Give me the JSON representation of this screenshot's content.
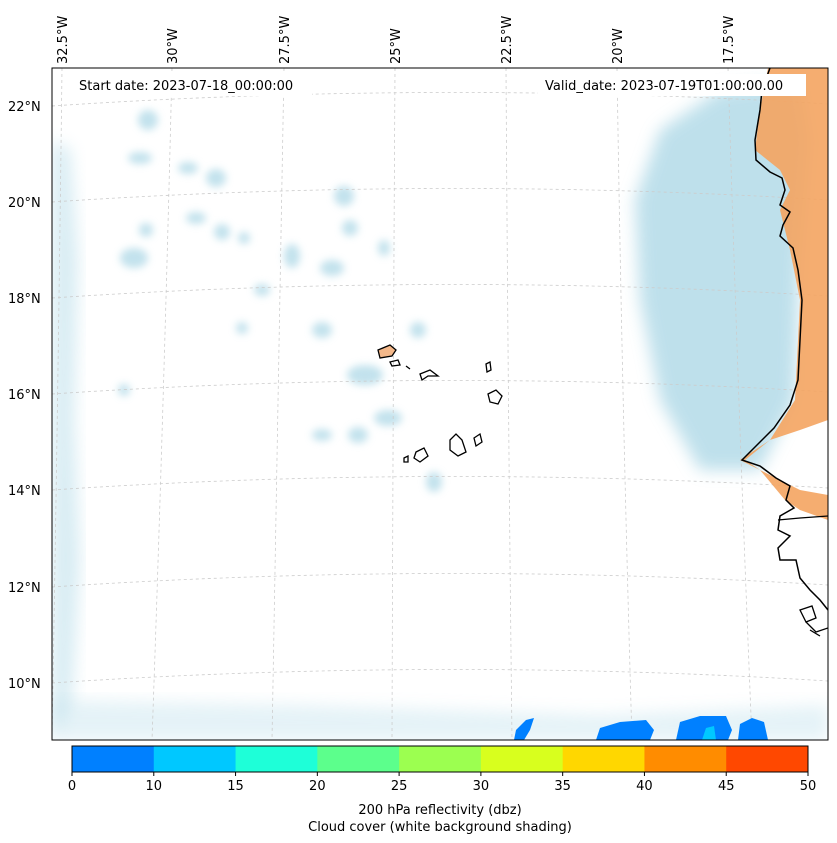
{
  "map": {
    "start_date": "Start date: 2023-07-18_00:00:00",
    "valid_date": "Valid_date: 2023-07-19T01:00:00.00",
    "lon_labels": [
      "32.5°W",
      "30°W",
      "27.5°W",
      "25°W",
      "22.5°W",
      "20°W",
      "17.5°W"
    ],
    "lat_labels": [
      "22°N",
      "20°N",
      "18°N",
      "16°N",
      "14°N",
      "12°N",
      "10°N"
    ]
  },
  "colorbar": {
    "ticks": [
      "0",
      "10",
      "15",
      "20",
      "25",
      "30",
      "35",
      "40",
      "45",
      "50"
    ],
    "colors": [
      "#0080ff",
      "#00c8ff",
      "#1effd8",
      "#5cff8c",
      "#9cff50",
      "#d8ff1e",
      "#ffd700",
      "#ff8c00",
      "#ff4800"
    ],
    "label_line1": "200 hPa reflectivity (dbz)",
    "label_line2": "Cloud cover (white background shading)"
  },
  "colors": {
    "cloud": "#a9d6e5",
    "land_warm": "#f4a460",
    "reflectivity_blue": "#0080ff"
  }
}
